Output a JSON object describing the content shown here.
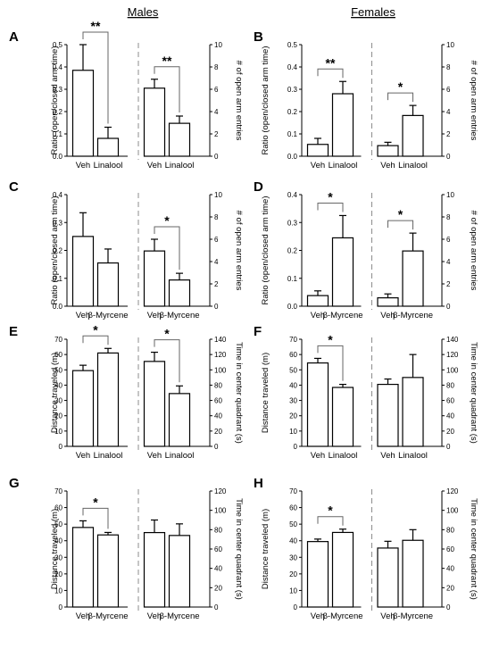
{
  "header": {
    "males": "Males",
    "females": "Females"
  },
  "chart_data": [
    {
      "panel": "A",
      "type": "bar",
      "ylabel_left": "Ratio (open/closed arm time)",
      "ylim_left": [
        0,
        0.5
      ],
      "yticks_left": [
        "0.0",
        "0.1",
        "0.2",
        "0.3",
        "0.4",
        "0.5"
      ],
      "ylabel_right": "# of open arm entries",
      "ylim_right": [
        0,
        10
      ],
      "yticks_right": [
        "0",
        "2",
        "4",
        "6",
        "8",
        "10"
      ],
      "groups": [
        {
          "axis": "left",
          "categories": [
            "Veh",
            "Linalool"
          ],
          "values": [
            0.385,
            0.08
          ],
          "errors": [
            0.115,
            0.05
          ],
          "sig": "**"
        },
        {
          "axis": "right",
          "categories": [
            "Veh",
            "Linalool"
          ],
          "values": [
            6.1,
            2.95
          ],
          "errors": [
            0.8,
            0.65
          ],
          "sig": "**"
        }
      ]
    },
    {
      "panel": "B",
      "type": "bar",
      "ylabel_left": "Ratio (open/closed arm time)",
      "ylim_left": [
        0,
        0.5
      ],
      "yticks_left": [
        "0.0",
        "0.1",
        "0.2",
        "0.3",
        "0.4",
        "0.5"
      ],
      "ylabel_right": "# of open arm entries",
      "ylim_right": [
        0,
        10
      ],
      "yticks_right": [
        "0",
        "2",
        "4",
        "6",
        "8",
        "10"
      ],
      "groups": [
        {
          "axis": "left",
          "categories": [
            "Veh",
            "Linalool"
          ],
          "values": [
            0.053,
            0.28
          ],
          "errors": [
            0.027,
            0.055
          ],
          "sig": "**"
        },
        {
          "axis": "right",
          "categories": [
            "Veh",
            "Linalool"
          ],
          "values": [
            0.95,
            3.65
          ],
          "errors": [
            0.3,
            0.9
          ],
          "sig": "*"
        }
      ]
    },
    {
      "panel": "C",
      "type": "bar",
      "ylabel_left": "Ratio (open/closed arm time)",
      "ylim_left": [
        0,
        0.4
      ],
      "yticks_left": [
        "0.0",
        "0.1",
        "0.2",
        "0.3",
        "0.4"
      ],
      "ylabel_right": "# of open arm entries",
      "ylim_right": [
        0,
        10
      ],
      "yticks_right": [
        "0",
        "2",
        "4",
        "6",
        "8",
        "10"
      ],
      "groups": [
        {
          "axis": "left",
          "categories": [
            "Veh",
            "β-Myrcene"
          ],
          "values": [
            0.25,
            0.155
          ],
          "errors": [
            0.085,
            0.05
          ],
          "sig": ""
        },
        {
          "axis": "right",
          "categories": [
            "Veh",
            "β-Myrcene"
          ],
          "values": [
            4.95,
            2.35
          ],
          "errors": [
            1.05,
            0.6
          ],
          "sig": "*"
        }
      ]
    },
    {
      "panel": "D",
      "type": "bar",
      "ylabel_left": "Ratio (open/closed arm time)",
      "ylim_left": [
        0,
        0.4
      ],
      "yticks_left": [
        "0.0",
        "0.1",
        "0.2",
        "0.3",
        "0.4"
      ],
      "ylabel_right": "# of open arm entries",
      "ylim_right": [
        0,
        10
      ],
      "yticks_right": [
        "0",
        "2",
        "4",
        "6",
        "8",
        "10"
      ],
      "groups": [
        {
          "axis": "left",
          "categories": [
            "Veh",
            "β-Myrcene"
          ],
          "values": [
            0.038,
            0.245
          ],
          "errors": [
            0.017,
            0.08
          ],
          "sig": "*"
        },
        {
          "axis": "right",
          "categories": [
            "Veh",
            "β-Myrcene"
          ],
          "values": [
            0.75,
            4.95
          ],
          "errors": [
            0.35,
            1.6
          ],
          "sig": "*"
        }
      ]
    },
    {
      "panel": "E",
      "type": "bar",
      "ylabel_left": "Distance traveled (m)",
      "ylim_left": [
        0,
        70
      ],
      "yticks_left": [
        "0",
        "10",
        "20",
        "30",
        "40",
        "50",
        "60",
        "70"
      ],
      "ylabel_right": "Time in center quadrant (s)",
      "ylim_right": [
        0,
        140
      ],
      "yticks_right": [
        "0",
        "20",
        "40",
        "60",
        "80",
        "100",
        "120",
        "140"
      ],
      "groups": [
        {
          "axis": "left",
          "categories": [
            "Veh",
            "Linalool"
          ],
          "values": [
            49.5,
            61
          ],
          "errors": [
            3.5,
            3
          ],
          "sig": "*"
        },
        {
          "axis": "right",
          "categories": [
            "Veh",
            "Linalool"
          ],
          "values": [
            111,
            69
          ],
          "errors": [
            12,
            10
          ],
          "sig": "*"
        }
      ]
    },
    {
      "panel": "F",
      "type": "bar",
      "ylabel_left": "Distance traveled (m)",
      "ylim_left": [
        0,
        70
      ],
      "yticks_left": [
        "0",
        "10",
        "20",
        "30",
        "40",
        "50",
        "60",
        "70"
      ],
      "ylabel_right": "Time in center quadrant (s)",
      "ylim_right": [
        0,
        140
      ],
      "yticks_right": [
        "0",
        "20",
        "40",
        "60",
        "80",
        "100",
        "120",
        "140"
      ],
      "groups": [
        {
          "axis": "left",
          "categories": [
            "Veh",
            "Linalool"
          ],
          "values": [
            54.5,
            38.5
          ],
          "errors": [
            3,
            2
          ],
          "sig": "*"
        },
        {
          "axis": "right",
          "categories": [
            "Veh",
            "Linalool"
          ],
          "values": [
            81,
            90
          ],
          "errors": [
            7,
            30
          ],
          "sig": ""
        }
      ]
    },
    {
      "panel": "G",
      "type": "bar",
      "ylabel_left": "Distance traveled (m)",
      "ylim_left": [
        0,
        70
      ],
      "yticks_left": [
        "0",
        "10",
        "20",
        "30",
        "40",
        "50",
        "60",
        "70"
      ],
      "ylabel_right": "Time in center quadrant (s)",
      "ylim_right": [
        0,
        120
      ],
      "yticks_right": [
        "0",
        "20",
        "40",
        "60",
        "80",
        "100",
        "120"
      ],
      "groups": [
        {
          "axis": "left",
          "categories": [
            "Veh",
            "β-Myrcene"
          ],
          "values": [
            48,
            43.5
          ],
          "errors": [
            4,
            1.5
          ],
          "sig": "*"
        },
        {
          "axis": "right",
          "categories": [
            "Veh",
            "β-Myrcene"
          ],
          "values": [
            77,
            74
          ],
          "errors": [
            13,
            12
          ],
          "sig": ""
        }
      ]
    },
    {
      "panel": "H",
      "type": "bar",
      "ylabel_left": "Distance traveled (m)",
      "ylim_left": [
        0,
        70
      ],
      "yticks_left": [
        "0",
        "10",
        "20",
        "30",
        "40",
        "50",
        "60",
        "70"
      ],
      "ylabel_right": "Time in center quadrant (s)",
      "ylim_right": [
        0,
        120
      ],
      "yticks_right": [
        "0",
        "20",
        "40",
        "60",
        "80",
        "100",
        "120"
      ],
      "groups": [
        {
          "axis": "left",
          "categories": [
            "Veh",
            "β-Myrcene"
          ],
          "values": [
            39.5,
            45
          ],
          "errors": [
            1.5,
            2
          ],
          "sig": "*"
        },
        {
          "axis": "right",
          "categories": [
            "Veh",
            "β-Myrcene"
          ],
          "values": [
            61,
            69
          ],
          "errors": [
            7,
            11
          ],
          "sig": ""
        }
      ]
    }
  ]
}
